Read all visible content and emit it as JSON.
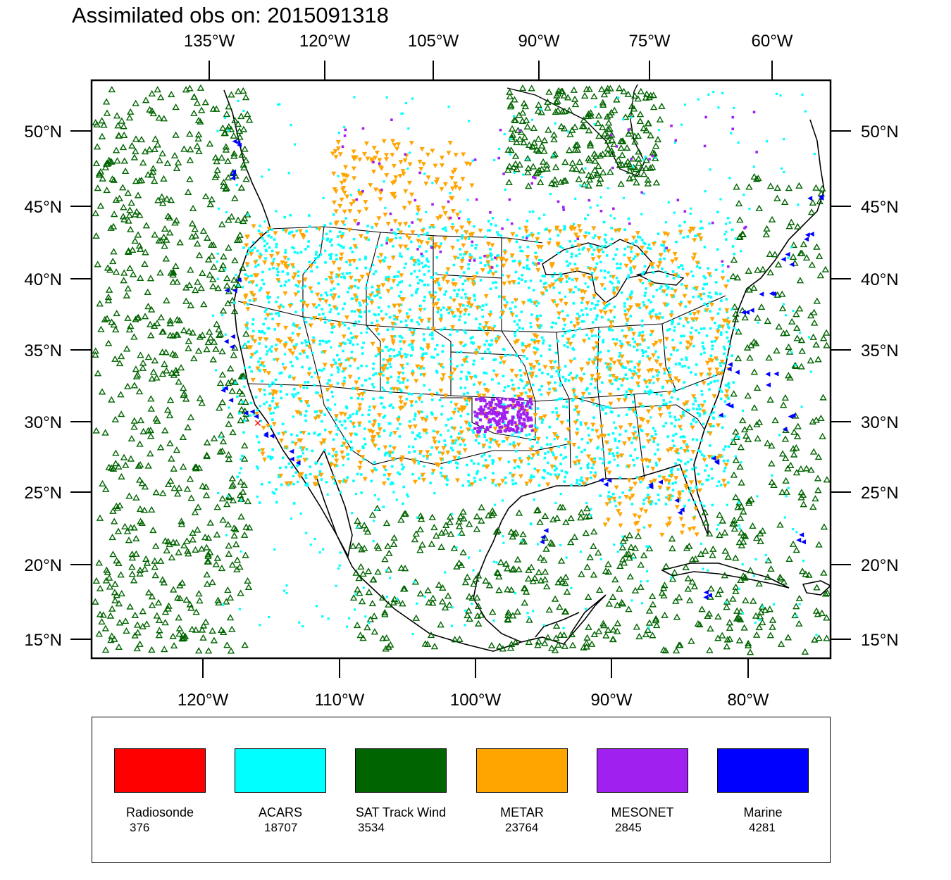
{
  "title": "Assimilated obs on: 2015091318",
  "top_axis_labels": [
    "135°W",
    "120°W",
    "105°W",
    "90°W",
    "75°W",
    "60°W"
  ],
  "bottom_axis_labels": [
    "120°W",
    "110°W",
    "100°W",
    "90°W",
    "80°W"
  ],
  "lat_labels": [
    "50°N",
    "45°N",
    "40°N",
    "35°N",
    "30°N",
    "25°N",
    "20°N",
    "15°N"
  ],
  "legend": [
    {
      "name": "Radiosonde",
      "count": "376",
      "color": "#ff0000"
    },
    {
      "name": "ACARS",
      "count": "18707",
      "color": "#00ffff"
    },
    {
      "name": "SAT Track Wind",
      "count": "3534",
      "color": "#006400"
    },
    {
      "name": "METAR",
      "count": "23764",
      "color": "#ffa500"
    },
    {
      "name": "MESONET",
      "count": "2845",
      "color": "#a020f0"
    },
    {
      "name": "Marine",
      "count": "4281",
      "color": "#0000ff"
    }
  ]
}
